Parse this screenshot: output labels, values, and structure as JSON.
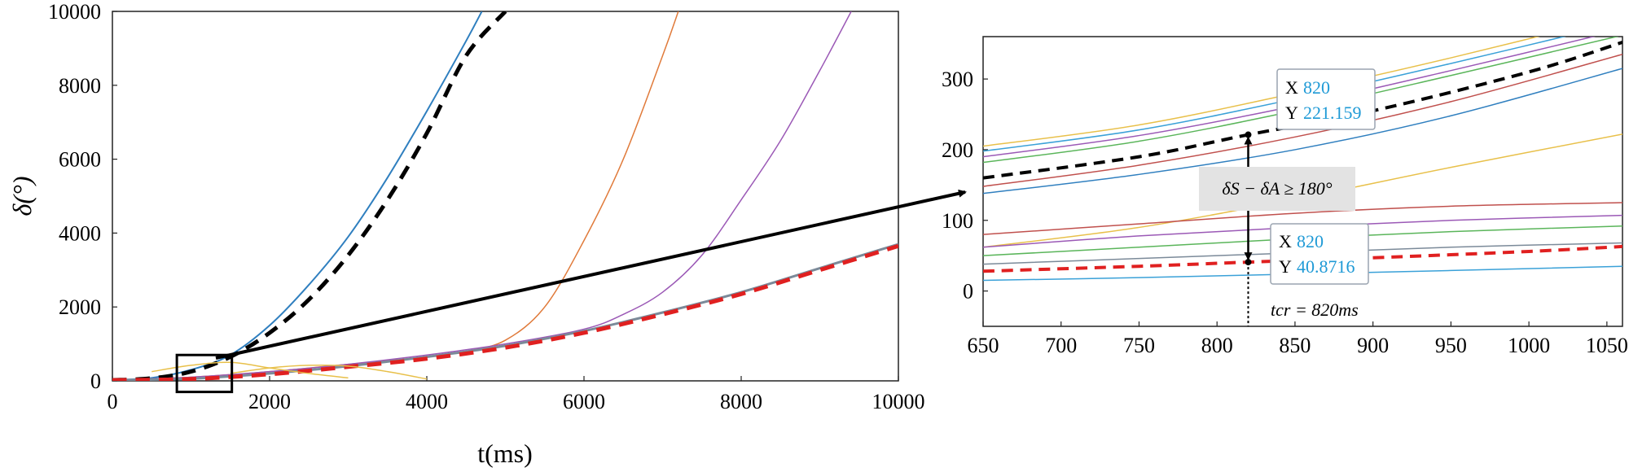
{
  "chart_data": [
    {
      "type": "line",
      "xlabel": "t(ms)",
      "ylabel": "δ(°)",
      "xlim": [
        0,
        10000
      ],
      "ylim": [
        0,
        10000
      ],
      "xticks": [
        0,
        2000,
        4000,
        6000,
        8000,
        10000
      ],
      "yticks": [
        0,
        2000,
        4000,
        6000,
        8000,
        10000
      ],
      "zoom_box": {
        "x": [
          820,
          1520
        ],
        "y": [
          -300,
          700
        ]
      },
      "series": [
        {
          "color": "#2f7fbf",
          "width": 2,
          "dash": "solid",
          "x": [
            0,
            500,
            1000,
            1500,
            2000,
            2500,
            3000,
            3500,
            4000,
            4500,
            4700
          ],
          "y": [
            20,
            80,
            300,
            700,
            1500,
            2600,
            3900,
            5500,
            7300,
            9200,
            10000
          ]
        },
        {
          "color": "#000000",
          "width": 5,
          "dash": "dashed",
          "x": [
            0,
            500,
            1000,
            1500,
            2000,
            2500,
            3000,
            3500,
            4000,
            4500,
            5000
          ],
          "y": [
            20,
            70,
            250,
            650,
            1300,
            2200,
            3400,
            4900,
            6700,
            8800,
            10000
          ]
        },
        {
          "color": "#e07a3a",
          "width": 1.5,
          "dash": "solid",
          "x": [
            0,
            1000,
            2000,
            3000,
            4000,
            4500,
            5000,
            5500,
            6000,
            6500,
            7000,
            7200
          ],
          "y": [
            20,
            100,
            250,
            450,
            650,
            800,
            1100,
            2000,
            3800,
            6000,
            8800,
            10000
          ]
        },
        {
          "color": "#9b59b6",
          "width": 1.5,
          "dash": "solid",
          "x": [
            0,
            1000,
            2000,
            3000,
            4000,
            5000,
            6000,
            6500,
            7000,
            7500,
            8000,
            8500,
            9000,
            9400
          ],
          "y": [
            20,
            100,
            250,
            450,
            700,
            1000,
            1400,
            1800,
            2400,
            3400,
            4900,
            6500,
            8400,
            10000
          ]
        },
        {
          "color": "#7b8a99",
          "width": 3,
          "dash": "solid",
          "x": [
            0,
            1000,
            2000,
            3000,
            4000,
            5000,
            6000,
            7000,
            8000,
            9000,
            10000
          ],
          "y": [
            20,
            60,
            200,
            400,
            650,
            950,
            1350,
            1850,
            2400,
            3050,
            3700
          ]
        },
        {
          "color": "#e02020",
          "width": 5,
          "dash": "dashed",
          "x": [
            0,
            1000,
            2000,
            3000,
            4000,
            5000,
            6000,
            7000,
            8000,
            9000,
            10000
          ],
          "y": [
            20,
            50,
            180,
            380,
            600,
            900,
            1300,
            1800,
            2350,
            3000,
            3650
          ]
        },
        {
          "color": "#e8c04a",
          "width": 1.5,
          "dash": "solid",
          "x": [
            500,
            1000,
            1500,
            2000,
            2500,
            3000
          ],
          "y": [
            250,
            420,
            500,
            350,
            200,
            80
          ]
        },
        {
          "color": "#e8c04a",
          "width": 1.5,
          "dash": "solid",
          "x": [
            1500,
            2000,
            2500,
            3000,
            3500,
            4000
          ],
          "y": [
            200,
            350,
            420,
            400,
            250,
            50
          ]
        }
      ]
    },
    {
      "type": "line",
      "xlim": [
        650,
        1060
      ],
      "ylim": [
        -50,
        360
      ],
      "xticks": [
        650,
        700,
        750,
        800,
        850,
        900,
        950,
        1000,
        1050
      ],
      "yticks": [
        0,
        100,
        200,
        300
      ],
      "series": [
        {
          "color": "#e8c04a",
          "width": 1.5,
          "dash": "solid",
          "x": [
            650,
            750,
            850,
            950,
            1060
          ],
          "y": [
            205,
            235,
            280,
            330,
            390
          ]
        },
        {
          "color": "#3aa1d8",
          "width": 1.5,
          "dash": "solid",
          "x": [
            650,
            750,
            850,
            950,
            1060
          ],
          "y": [
            198,
            228,
            272,
            322,
            380
          ]
        },
        {
          "color": "#9b59b6",
          "width": 1.5,
          "dash": "solid",
          "x": [
            650,
            750,
            850,
            950,
            1060
          ],
          "y": [
            190,
            220,
            262,
            312,
            370
          ]
        },
        {
          "color": "#5ab55a",
          "width": 1.5,
          "dash": "solid",
          "x": [
            650,
            750,
            850,
            950,
            1060
          ],
          "y": [
            182,
            212,
            255,
            305,
            362
          ]
        },
        {
          "color": "#000000",
          "width": 4,
          "dash": "dashed",
          "x": [
            650,
            750,
            820,
            900,
            1000,
            1060
          ],
          "y": [
            160,
            190,
            221.159,
            255,
            310,
            352
          ]
        },
        {
          "color": "#c0504d",
          "width": 1.5,
          "dash": "solid",
          "x": [
            650,
            750,
            850,
            950,
            1060
          ],
          "y": [
            148,
            178,
            218,
            268,
            335
          ]
        },
        {
          "color": "#2f7fbf",
          "width": 1.5,
          "dash": "solid",
          "x": [
            650,
            750,
            850,
            950,
            1060
          ],
          "y": [
            138,
            165,
            200,
            248,
            315
          ]
        },
        {
          "color": "#e8c04a",
          "width": 1.5,
          "dash": "solid",
          "x": [
            650,
            750,
            850,
            950,
            1060
          ],
          "y": [
            62,
            90,
            130,
            175,
            222
          ]
        },
        {
          "color": "#c0504d",
          "width": 1.5,
          "dash": "solid",
          "x": [
            650,
            750,
            850,
            950,
            1060
          ],
          "y": [
            80,
            95,
            110,
            120,
            125
          ]
        },
        {
          "color": "#9b59b6",
          "width": 1.5,
          "dash": "solid",
          "x": [
            650,
            750,
            850,
            950,
            1060
          ],
          "y": [
            62,
            78,
            90,
            100,
            107
          ]
        },
        {
          "color": "#5ab55a",
          "width": 1.5,
          "dash": "solid",
          "x": [
            650,
            750,
            850,
            950,
            1060
          ],
          "y": [
            50,
            62,
            74,
            84,
            92
          ]
        },
        {
          "color": "#7b8a99",
          "width": 1.5,
          "dash": "solid",
          "x": [
            650,
            750,
            850,
            950,
            1060
          ],
          "y": [
            38,
            46,
            54,
            62,
            68
          ]
        },
        {
          "color": "#e02020",
          "width": 4,
          "dash": "dashed",
          "x": [
            650,
            750,
            820,
            900,
            1000,
            1060
          ],
          "y": [
            28,
            35,
            40.8716,
            47,
            56,
            63
          ]
        },
        {
          "color": "#3aa1d8",
          "width": 1.5,
          "dash": "solid",
          "x": [
            650,
            750,
            850,
            950,
            1060
          ],
          "y": [
            15,
            19,
            24,
            29,
            35
          ]
        }
      ],
      "datatips": [
        {
          "x_label": "X",
          "y_label": "Y",
          "x_value": "820",
          "y_value": "221.159"
        },
        {
          "x_label": "X",
          "y_label": "Y",
          "x_value": "820",
          "y_value": "40.8716"
        }
      ],
      "annotations": {
        "delta_label": "δS − δA ≥ 180°",
        "tcr_label": "tcr = 820ms",
        "tcr_x": 820
      }
    }
  ],
  "colors": {
    "datatip_value": "#1f9ad6",
    "annotation_bg": "#e3e3e3"
  }
}
